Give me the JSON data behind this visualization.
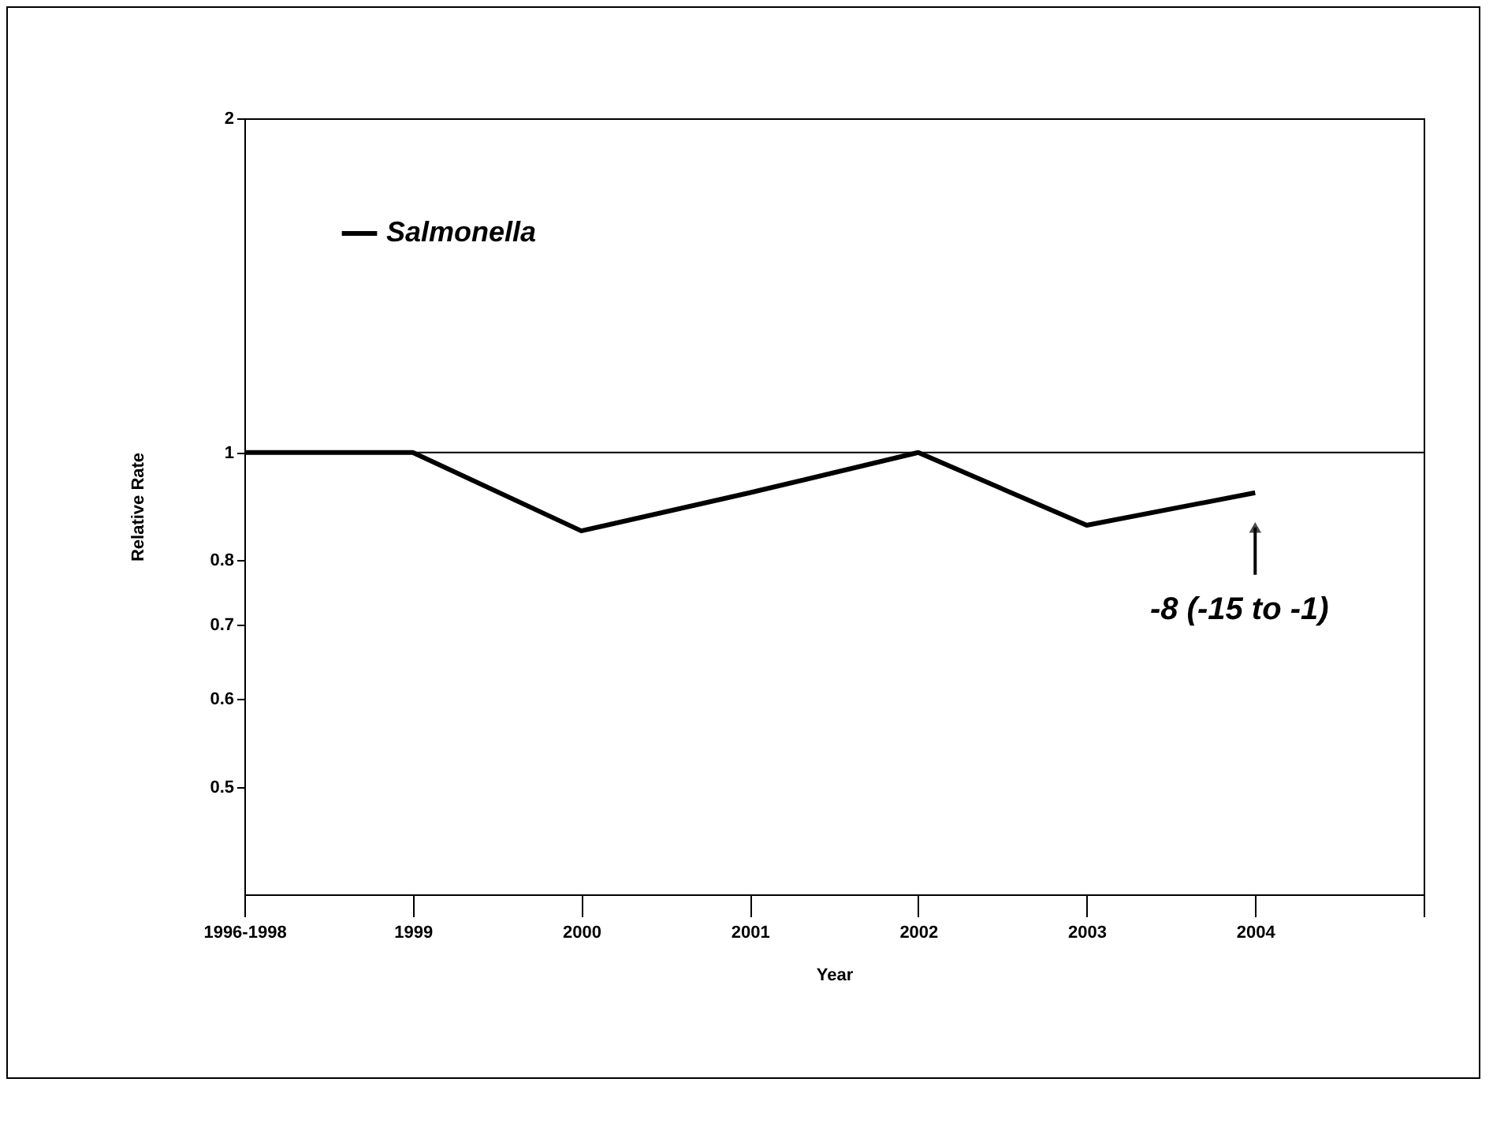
{
  "chart_data": {
    "type": "line",
    "xlabel": "Year",
    "ylabel": "Relative Rate",
    "categories": [
      "1996-1998",
      "1999",
      "2000",
      "2001",
      "2002",
      "2003",
      "2004",
      null
    ],
    "series": [
      {
        "name": "Salmonella",
        "color": "#000000",
        "values": [
          1.0,
          1.0,
          0.85,
          0.92,
          1.0,
          0.86,
          0.92,
          null
        ]
      }
    ],
    "ylim": [
      0.4,
      2
    ],
    "yticks": [
      0.5,
      0.6,
      0.7,
      0.8,
      1,
      2
    ],
    "log": "y",
    "ref_lines": [
      {
        "axis": "y",
        "value": 1,
        "color": "#000000"
      }
    ],
    "annotations": [
      "-8 (-15 to -1)"
    ],
    "legend": "top left",
    "grid": false,
    "marker": "none",
    "line_style": "solid"
  }
}
